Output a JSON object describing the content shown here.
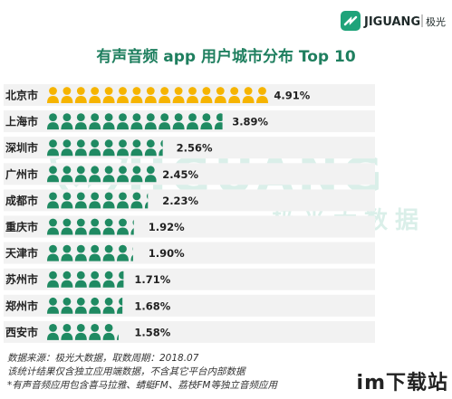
{
  "brand": {
    "name": "JIGUANG",
    "name_cn": "极光",
    "watermark_en": "JIGUANG",
    "watermark_cn": "极光大数据",
    "color": "#1fa37a"
  },
  "corner_watermark": "im下载站",
  "chart_data": {
    "type": "bar",
    "title": "有声音频 app 用户城市分布 Top 10",
    "categories": [
      "北京市",
      "上海市",
      "深圳市",
      "广州市",
      "成都市",
      "重庆市",
      "天津市",
      "苏州市",
      "郑州市",
      "西安市"
    ],
    "values": [
      4.91,
      3.89,
      2.56,
      2.45,
      2.23,
      1.92,
      1.9,
      1.71,
      1.68,
      1.58
    ],
    "value_labels": [
      "4.91%",
      "3.89%",
      "2.56%",
      "2.45%",
      "2.23%",
      "1.92%",
      "1.90%",
      "1.71%",
      "1.68%",
      "1.58%"
    ],
    "unit": "%",
    "highlight_color": "#f6b400",
    "series_color": "#1f8a62",
    "xlabel": "",
    "ylabel": ""
  },
  "footer": {
    "source": "数据来源：极光大数据，取数周期：2018.07",
    "note1": "该统计结果仅含独立应用端数据，不含其它平台内部数据",
    "note2": "*有声音频应用包含喜马拉雅、蜻蜓FM、荔枝FM等独立音频应用"
  }
}
